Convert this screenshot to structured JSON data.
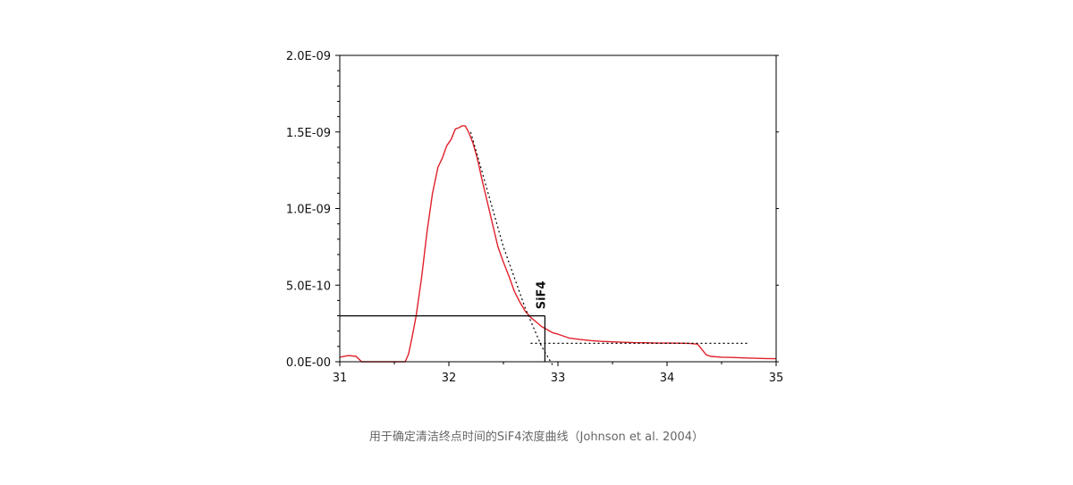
{
  "caption": "用于确定清洁终点时间的SiF4浓度曲线（Johnson et al. 2004）",
  "chart_data": {
    "type": "line",
    "title": "",
    "xlabel": "",
    "ylabel": "",
    "xlim": [
      31,
      35
    ],
    "ylim": [
      0,
      2e-09
    ],
    "x_ticks": [
      31,
      32,
      33,
      34,
      35
    ],
    "x_tick_labels": [
      "31",
      "32",
      "33",
      "34",
      "35"
    ],
    "y_ticks": [
      0,
      5e-10,
      1e-09,
      1.5e-09,
      2e-09
    ],
    "y_tick_labels": [
      "0.0E-00",
      "5.0E-10",
      "1.0E-09",
      "1.5E-09",
      "2.0E-09"
    ],
    "grid": false,
    "annotation": "SiF4",
    "series": [
      {
        "color": "#e0202a",
        "style": "solid",
        "x": [
          31.0,
          31.08,
          31.15,
          31.2,
          31.3,
          31.4,
          31.5,
          31.6,
          31.63,
          31.66,
          31.7,
          31.75,
          31.8,
          31.85,
          31.9,
          31.94,
          31.98,
          32.02,
          32.06,
          32.1,
          32.12,
          32.15,
          32.18,
          32.22,
          32.26,
          32.3,
          32.35,
          32.4,
          32.45,
          32.5,
          32.55,
          32.6,
          32.65,
          32.7,
          32.75,
          32.8,
          32.85,
          32.9,
          32.95,
          33.0,
          33.1,
          33.2,
          33.3,
          33.4,
          33.5,
          33.6,
          33.7,
          33.8,
          33.9,
          34.0,
          34.1,
          34.2,
          34.28,
          34.32,
          34.36,
          34.4,
          34.5,
          34.6,
          34.7,
          34.8,
          34.9,
          35.0
        ],
        "y": [
          3e-11,
          4e-11,
          3.5e-11,
          0,
          0,
          0,
          0,
          0,
          5e-11,
          1.5e-10,
          3e-10,
          5.5e-10,
          8.5e-10,
          1.1e-09,
          1.27e-09,
          1.33e-09,
          1.41e-09,
          1.45e-09,
          1.52e-09,
          1.53e-09,
          1.54e-09,
          1.54e-09,
          1.5e-09,
          1.43e-09,
          1.33e-09,
          1.2e-09,
          1.05e-09,
          9e-10,
          7.5e-10,
          6.5e-10,
          5.6e-10,
          4.6e-10,
          3.9e-10,
          3.3e-10,
          2.9e-10,
          2.6e-10,
          2.3e-10,
          2.1e-10,
          1.9e-10,
          1.8e-10,
          1.55e-10,
          1.45e-10,
          1.38e-10,
          1.33e-10,
          1.3e-10,
          1.27e-10,
          1.25e-10,
          1.24e-10,
          1.22e-10,
          1.22e-10,
          1.21e-10,
          1.2e-10,
          1.15e-10,
          8e-11,
          4.5e-11,
          3.5e-11,
          3e-11,
          2.8e-11,
          2.5e-11,
          2.3e-11,
          2.1e-11,
          2e-11
        ]
      },
      {
        "color": "#000000",
        "style": "dotted",
        "x": [
          32.2,
          32.5,
          32.7,
          32.85,
          32.95
        ],
        "y": [
          1.5e-09,
          7.5e-10,
          3.5e-10,
          1e-10,
          -2e-11
        ]
      },
      {
        "color": "#000000",
        "style": "dotted",
        "x": [
          32.75,
          34.75
        ],
        "y": [
          1.2e-10,
          1.2e-10
        ]
      },
      {
        "color": "#000000",
        "style": "solid",
        "x": [
          31.0,
          32.88
        ],
        "y": [
          3e-10,
          3e-10
        ]
      },
      {
        "color": "#000000",
        "style": "solid",
        "x": [
          32.88,
          32.88
        ],
        "y": [
          3e-10,
          0
        ]
      }
    ]
  }
}
